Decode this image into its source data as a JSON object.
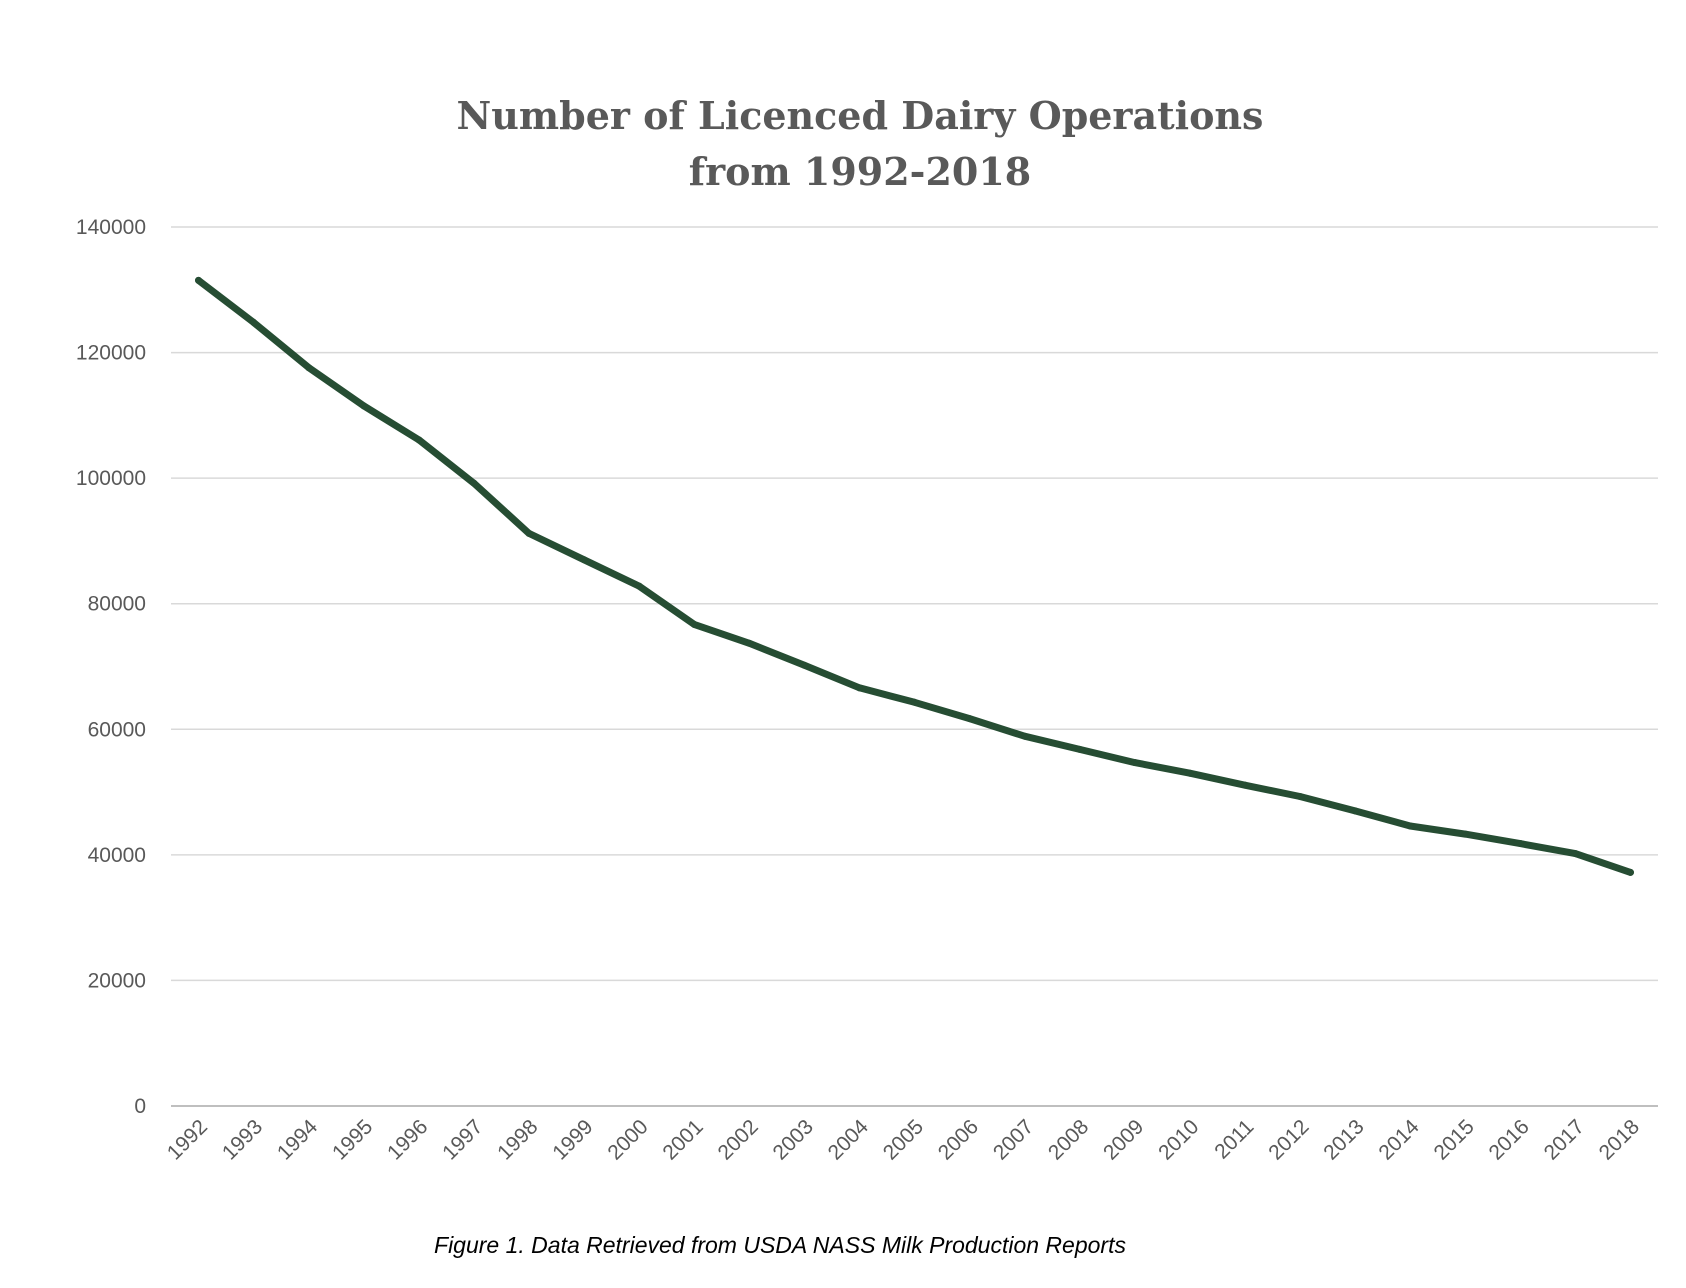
{
  "chart_data": {
    "type": "line",
    "title_lines": [
      "Number of Licenced Dairy Operations",
      "from 1992-2018"
    ],
    "caption": "Figure 1. Data Retrieved from USDA NASS Milk Production Reports",
    "xlabel": "",
    "ylabel": "",
    "categories": [
      "1992",
      "1993",
      "1994",
      "1995",
      "1996",
      "1997",
      "1998",
      "1999",
      "2000",
      "2001",
      "2002",
      "2003",
      "2004",
      "2005",
      "2006",
      "2007",
      "2008",
      "2009",
      "2010",
      "2011",
      "2012",
      "2013",
      "2014",
      "2015",
      "2016",
      "2017",
      "2018"
    ],
    "series": [
      {
        "values": [
          131500,
          124800,
          117600,
          111500,
          106100,
          99200,
          91200,
          87000,
          82800,
          76700,
          73700,
          70200,
          66600,
          64300,
          61700,
          58900,
          56800,
          54700,
          53000,
          51100,
          49300,
          47000,
          44600,
          43300,
          41800,
          40200,
          37200
        ]
      }
    ],
    "ylim": [
      0,
      140000
    ],
    "yticks": [
      0,
      20000,
      40000,
      60000,
      80000,
      100000,
      120000,
      140000
    ],
    "grid": true,
    "legend": "none",
    "line_color": "#264d33",
    "grid_color": "#d9d9d9",
    "axis_color": "#bfbfbf",
    "text_color": "#595959"
  }
}
